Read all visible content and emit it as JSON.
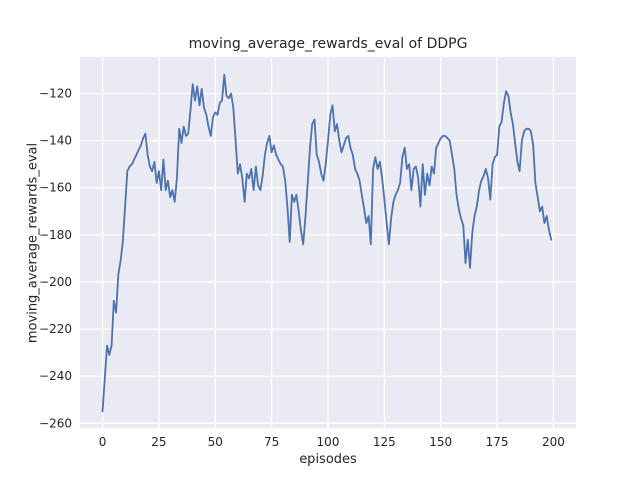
{
  "figure": {
    "title": "moving_average_rewards_eval of DDPG"
  },
  "colors": {
    "line": "#4c72b0",
    "plot_background": "#eaeaf2",
    "grid": "#ffffff",
    "text": "#262626",
    "figure_background": "#ffffff"
  },
  "chart_data": {
    "type": "line",
    "title": "moving_average_rewards_eval of DDPG",
    "xlabel": "episodes",
    "ylabel": "moving_average_rewards_eval",
    "x_ticks": [
      0,
      25,
      50,
      75,
      100,
      125,
      150,
      175,
      200
    ],
    "y_ticks": [
      -260,
      -240,
      -220,
      -200,
      -180,
      -160,
      -140,
      -120
    ],
    "xlim": [
      -10,
      210
    ],
    "ylim": [
      -262,
      -104.5
    ],
    "grid": true,
    "legend": "none",
    "series": [
      {
        "name": "moving_average_rewards_eval",
        "x_start": 0,
        "x_step": 1,
        "values": [
          -255,
          -241,
          -227,
          -231,
          -227,
          -208,
          -213,
          -197,
          -191,
          -183,
          -168,
          -153,
          -151,
          -150,
          -148,
          -146,
          -144,
          -142,
          -139,
          -137,
          -146,
          -151,
          -153,
          -149,
          -158,
          -153,
          -161,
          -148,
          -161,
          -157,
          -164,
          -161,
          -166,
          -156,
          -135,
          -141,
          -134,
          -138,
          -137,
          -127,
          -116,
          -123,
          -117,
          -125,
          -118,
          -126,
          -129,
          -134,
          -138,
          -130,
          -128,
          -129,
          -124,
          -123,
          -112,
          -121,
          -122,
          -120,
          -126,
          -140,
          -154,
          -150,
          -156,
          -166,
          -154,
          -156,
          -152,
          -161,
          -151,
          -159,
          -161,
          -155,
          -146,
          -141,
          -138,
          -145,
          -142,
          -146,
          -148,
          -150,
          -151,
          -157,
          -168,
          -183,
          -163,
          -166,
          -163,
          -170,
          -178,
          -184,
          -172,
          -158,
          -143,
          -133,
          -131,
          -146,
          -149,
          -154,
          -157,
          -150,
          -140,
          -129,
          -125,
          -136,
          -133,
          -140,
          -145,
          -142,
          -139,
          -138,
          -143,
          -146,
          -152,
          -154,
          -157,
          -163,
          -169,
          -175,
          -172,
          -184,
          -152,
          -147,
          -152,
          -149,
          -156,
          -165,
          -175,
          -184,
          -173,
          -166,
          -163,
          -161,
          -158,
          -147,
          -143,
          -152,
          -150,
          -161,
          -152,
          -151,
          -156,
          -168,
          -150,
          -163,
          -154,
          -159,
          -151,
          -154,
          -143,
          -141,
          -139,
          -138,
          -138,
          -139,
          -140,
          -146,
          -152,
          -163,
          -169,
          -173,
          -176,
          -192,
          -182,
          -194,
          -179,
          -172,
          -168,
          -161,
          -157,
          -155,
          -152,
          -156,
          -165,
          -150,
          -147,
          -146,
          -134,
          -132,
          -124,
          -119,
          -121,
          -128,
          -133,
          -141,
          -149,
          -153,
          -140,
          -136,
          -135,
          -135,
          -136,
          -142,
          -158,
          -164,
          -170,
          -168,
          -175,
          -172,
          -178,
          -182
        ]
      }
    ]
  }
}
